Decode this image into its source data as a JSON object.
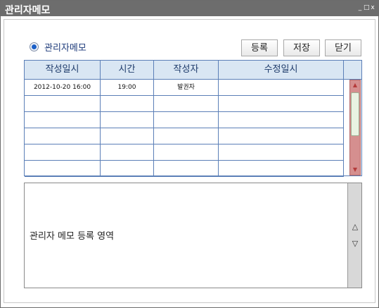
{
  "window": {
    "title": "관리자메모",
    "controls": [
      "_",
      "□",
      "x"
    ]
  },
  "radio": {
    "label": "관리자메모",
    "selected": true
  },
  "buttons": {
    "register": "등록",
    "save": "저장",
    "close": "닫기"
  },
  "table": {
    "headers": [
      "작성일시",
      "시간",
      "작성자",
      "수정일시"
    ],
    "rows": [
      [
        "2012-10-20 16:00",
        "19:00",
        "발권자",
        ""
      ],
      [
        "",
        "",
        "",
        ""
      ],
      [
        "",
        "",
        "",
        ""
      ],
      [
        "",
        "",
        "",
        ""
      ],
      [
        "",
        "",
        "",
        ""
      ],
      [
        "",
        "",
        "",
        ""
      ]
    ],
    "scroll_up_icon": "arrow-up",
    "scroll_down_icon": "arrow-down"
  },
  "memo": {
    "placeholder_text": "관리자 메모 등록 영역",
    "scroll_up_icon": "triangle-up",
    "scroll_down_icon": "triangle-down"
  }
}
